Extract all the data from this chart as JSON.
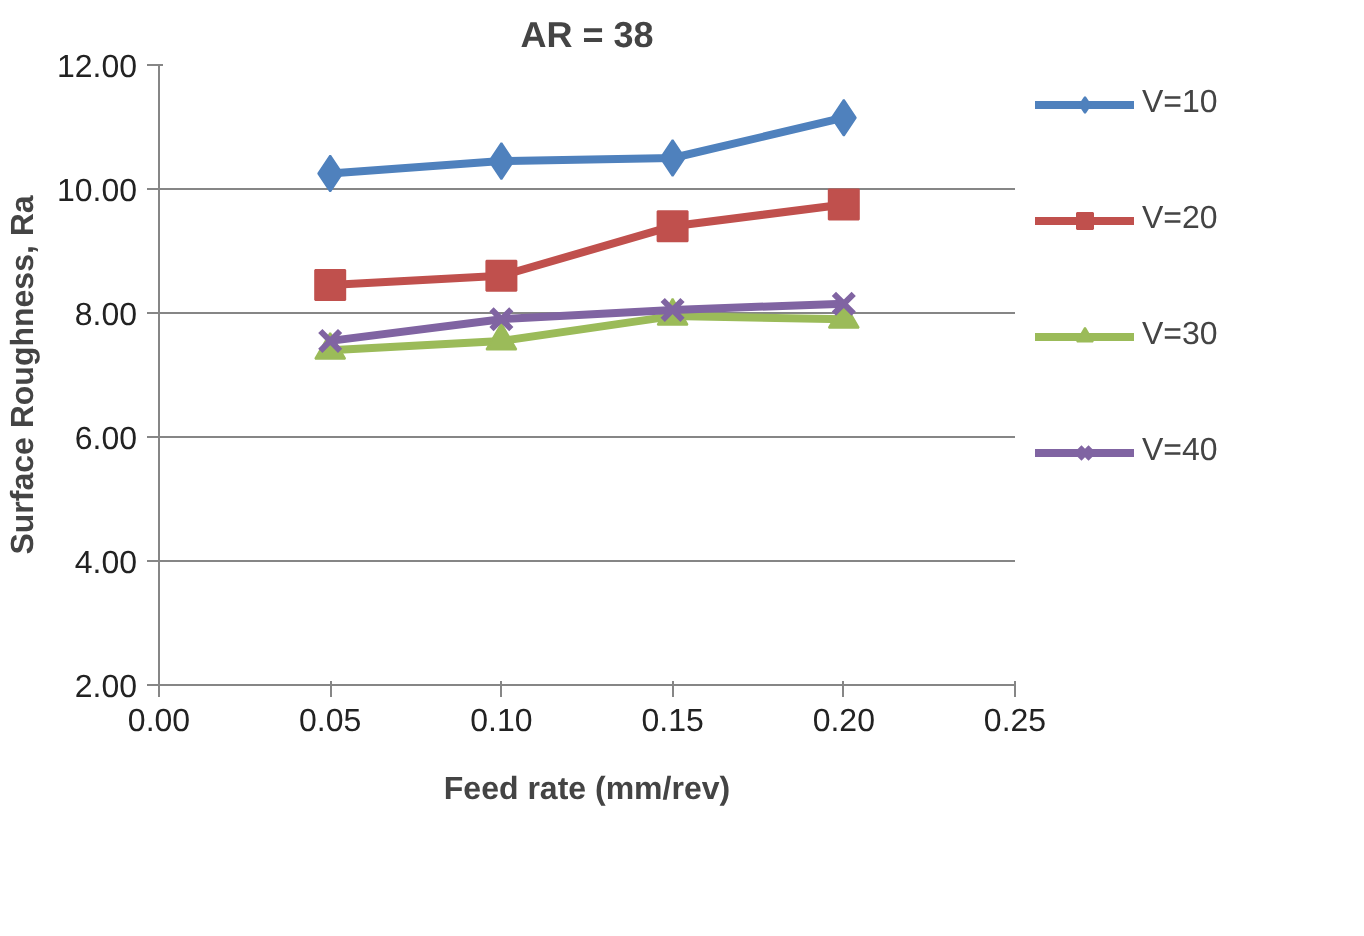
{
  "chart_data": {
    "type": "line",
    "title": "AR = 38",
    "xlabel": "Feed rate (mm/rev)",
    "ylabel": "Surface Roughness, Ra",
    "x": [
      0.05,
      0.1,
      0.15,
      0.2
    ],
    "series": [
      {
        "name": "V=10",
        "color": "#4f81bd",
        "marker": "diamond",
        "values": [
          10.25,
          10.45,
          10.5,
          11.15
        ]
      },
      {
        "name": "V=20",
        "color": "#c0504d",
        "marker": "square",
        "values": [
          8.45,
          8.6,
          9.4,
          9.75
        ]
      },
      {
        "name": "V=30",
        "color": "#9bbb59",
        "marker": "triangle",
        "values": [
          7.4,
          7.55,
          7.95,
          7.9
        ]
      },
      {
        "name": "V=40",
        "color": "#8064a2",
        "marker": "x",
        "values": [
          7.55,
          7.9,
          8.05,
          8.15
        ]
      }
    ],
    "xlim": [
      0,
      0.25
    ],
    "xticks": [
      {
        "value": 0,
        "label": "0.00"
      },
      {
        "value": 0.05,
        "label": "0.05"
      },
      {
        "value": 0.1,
        "label": "0.10"
      },
      {
        "value": 0.15,
        "label": "0.15"
      },
      {
        "value": 0.2,
        "label": "0.20"
      },
      {
        "value": 0.25,
        "label": "0.25"
      }
    ],
    "ylim": [
      2,
      12
    ],
    "yticks": [
      {
        "value": 2,
        "label": "2.00"
      },
      {
        "value": 4,
        "label": "4.00"
      },
      {
        "value": 6,
        "label": "6.00"
      },
      {
        "value": 8,
        "label": "8.00"
      },
      {
        "value": 10,
        "label": "10.00"
      },
      {
        "value": 12,
        "label": "12.00"
      }
    ],
    "grid": "y",
    "legend": "right",
    "line_style": "solid"
  }
}
